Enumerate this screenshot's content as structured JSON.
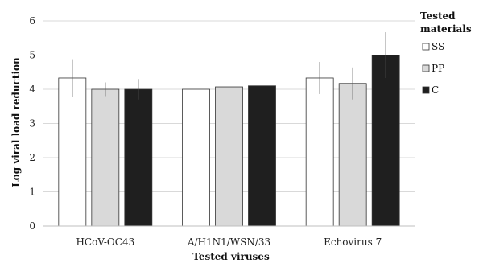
{
  "chart_data": {
    "type": "bar",
    "categories": [
      "HCoV-OC43",
      "A/H1N1/WSN/33",
      "Echovirus 7"
    ],
    "series": [
      {
        "name": "SS",
        "color": "#ffffff",
        "values": [
          4.33,
          4.0,
          4.33
        ],
        "errors": [
          0.55,
          0.2,
          0.47
        ]
      },
      {
        "name": "PP",
        "color": "#d9d9d9",
        "values": [
          4.0,
          4.07,
          4.17
        ],
        "errors": [
          0.2,
          0.35,
          0.47
        ]
      },
      {
        "name": "C",
        "color": "#1f1f1f",
        "values": [
          4.0,
          4.1,
          5.0
        ],
        "errors": [
          0.3,
          0.25,
          0.67
        ]
      }
    ],
    "ylabel": "Log viral load reduction",
    "xlabel": "Tested viruses",
    "ylim": [
      0,
      6
    ],
    "yticks": [
      0,
      1,
      2,
      3,
      4,
      5,
      6
    ],
    "grid": true,
    "legend": {
      "title_lines": [
        "Tested",
        "materials"
      ],
      "placement": "right"
    }
  }
}
